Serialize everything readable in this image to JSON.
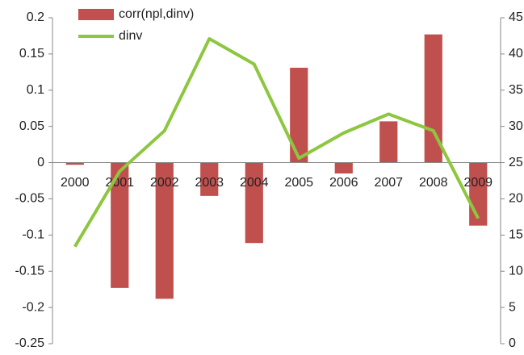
{
  "chart_data": {
    "type": "bar",
    "categories": [
      "2000",
      "2001",
      "2002",
      "2003",
      "2004",
      "2005",
      "2006",
      "2007",
      "2008",
      "2009"
    ],
    "series": [
      {
        "name": "corr(npl,dinv)",
        "type": "bar",
        "color": "#c0504d",
        "values": [
          -0.003,
          -0.173,
          -0.188,
          -0.046,
          -0.111,
          0.131,
          -0.015,
          0.057,
          0.177,
          -0.087
        ]
      },
      {
        "name": "dinv",
        "type": "line",
        "axis": "y2",
        "color": "#8dc63f",
        "values": [
          13.4,
          23.8,
          29.4,
          42.1,
          38.6,
          25.6,
          29.1,
          31.7,
          29.4,
          17.3
        ]
      }
    ],
    "ylim": [
      -0.25,
      0.2
    ],
    "yticks": [
      -0.25,
      -0.2,
      -0.15,
      -0.1,
      -0.05,
      0,
      0.05,
      0.1,
      0.15,
      0.2
    ],
    "y2lim": [
      0,
      45
    ],
    "y2ticks": [
      0,
      5,
      10,
      15,
      20,
      25,
      30,
      35,
      40,
      45
    ]
  }
}
